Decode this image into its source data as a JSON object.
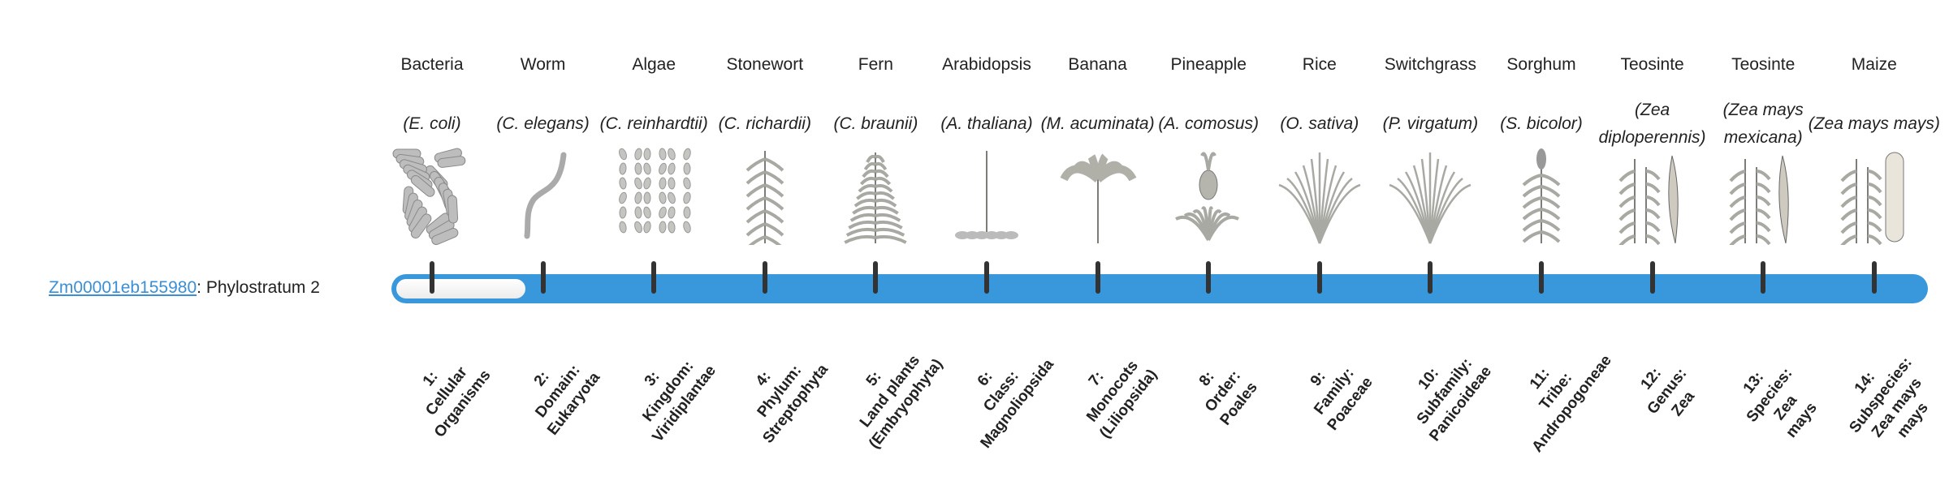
{
  "gene": {
    "id": "Zm00001eb155980",
    "separator": ": ",
    "label": "Phylostratum 2",
    "phylostratum": 2,
    "link_color": "#3a8fd6"
  },
  "bar": {
    "color": "#3898db",
    "total_strata": 14,
    "current": 2
  },
  "organisms": [
    {
      "common": "Bacteria",
      "scientific": "(E. coli)",
      "icon": "bacteria-icon"
    },
    {
      "common": "Worm",
      "scientific": "(C. elegans)",
      "icon": "worm-icon"
    },
    {
      "common": "Algae",
      "scientific": "(C. reinhardtii)",
      "icon": "algae-icon"
    },
    {
      "common": "Stonewort",
      "scientific": "(C. richardii)",
      "icon": "stonewort-icon"
    },
    {
      "common": "Fern",
      "scientific": "(C. braunii)",
      "icon": "fern-icon"
    },
    {
      "common": "Arabidopsis",
      "scientific": "(A. thaliana)",
      "icon": "arabidopsis-icon"
    },
    {
      "common": "Banana",
      "scientific": "(M. acuminata)",
      "icon": "banana-icon"
    },
    {
      "common": "Pineapple",
      "scientific": "(A. comosus)",
      "icon": "pineapple-icon"
    },
    {
      "common": "Rice",
      "scientific": "(O. sativa)",
      "icon": "rice-icon"
    },
    {
      "common": "Switchgrass",
      "scientific": "(P. virgatum)",
      "icon": "switchgrass-icon"
    },
    {
      "common": "Sorghum",
      "scientific": "(S. bicolor)",
      "icon": "sorghum-icon"
    },
    {
      "common": "Teosinte",
      "scientific": "(Zea diploperennis)",
      "icon": "teosinte-icon"
    },
    {
      "common": "Teosinte",
      "scientific": "(Zea mays mexicana)",
      "icon": "teosinte-icon"
    },
    {
      "common": "Maize",
      "scientific": "(Zea mays mays)",
      "icon": "maize-icon"
    }
  ],
  "ranks": [
    [
      "1:",
      "Cellular",
      "Organisms"
    ],
    [
      "2:",
      "Domain:",
      "Eukaryota"
    ],
    [
      "3:",
      "Kingdom:",
      "Viridiplantae"
    ],
    [
      "4:",
      "Phylum:",
      "Streptophyta"
    ],
    [
      "5:",
      "Land plants",
      "(Embryophyta)"
    ],
    [
      "6:",
      "Class:",
      "Magnoliopsida"
    ],
    [
      "7:",
      "Monocots",
      "(Liliopsida)"
    ],
    [
      "8:",
      "Order:",
      "Poales"
    ],
    [
      "9:",
      "Family:",
      "Poaceae"
    ],
    [
      "10:",
      "Subfamily:",
      "Panicoideae"
    ],
    [
      "11:",
      "Tribe:",
      "Andropogoneae"
    ],
    [
      "12:",
      "Genus:",
      "Zea"
    ],
    [
      "13:",
      "Species:",
      "Zea",
      "mays"
    ],
    [
      "14:",
      "Subspecies:",
      "Zea mays",
      "mays"
    ]
  ]
}
